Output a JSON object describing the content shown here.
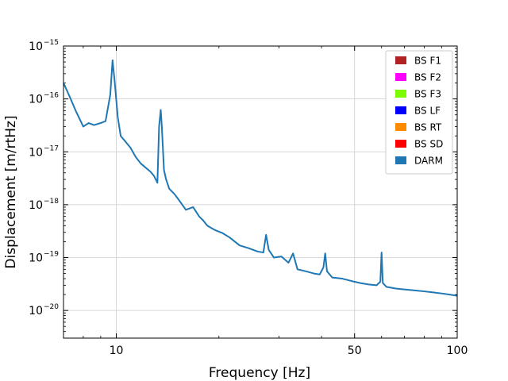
{
  "chart_data": {
    "type": "line",
    "xlabel": "Frequency [Hz]",
    "ylabel": "Displacement [m/rtHz]",
    "x_scale": "log",
    "y_scale": "log",
    "xlim": [
      7,
      100
    ],
    "ylim": [
      3e-21,
      1e-15
    ],
    "grid": true,
    "legend_position": "top-right",
    "x_ticks": [
      {
        "value": 10,
        "label": "10"
      },
      {
        "value": 50,
        "label": "50"
      },
      {
        "value": 100,
        "label": "100"
      }
    ],
    "y_ticks": [
      {
        "value": 1e-15,
        "base": "10",
        "exp": "−15"
      },
      {
        "value": 1e-16,
        "base": "10",
        "exp": "−16"
      },
      {
        "value": 1e-17,
        "base": "10",
        "exp": "−17"
      },
      {
        "value": 1e-18,
        "base": "10",
        "exp": "−18"
      },
      {
        "value": 1e-19,
        "base": "10",
        "exp": "−19"
      },
      {
        "value": 1e-20,
        "base": "10",
        "exp": "−20"
      }
    ],
    "legend": [
      {
        "name": "BS F1",
        "color": "#b22222"
      },
      {
        "name": "BS F2",
        "color": "#ff00ff"
      },
      {
        "name": "BS F3",
        "color": "#7cfc00"
      },
      {
        "name": "BS LF",
        "color": "#0000ff"
      },
      {
        "name": "BS RT",
        "color": "#ff8c00"
      },
      {
        "name": "BS SD",
        "color": "#ff0000"
      },
      {
        "name": "DARM",
        "color": "#1f77b4"
      }
    ],
    "series": [
      {
        "name": "DARM",
        "color": "#1f77b4",
        "x": [
          7.0,
          7.3,
          7.6,
          8.0,
          8.3,
          8.6,
          9.0,
          9.3,
          9.6,
          9.75,
          9.9,
          10.1,
          10.3,
          10.6,
          11.0,
          11.4,
          11.8,
          12.2,
          12.6,
          12.9,
          13.2,
          13.35,
          13.5,
          13.6,
          13.8,
          14.0,
          14.3,
          14.8,
          15.3,
          16.0,
          16.8,
          17.5,
          18.0,
          18.5,
          19.5,
          20.5,
          21.5,
          23.0,
          24.5,
          26.0,
          27.0,
          27.5,
          28.0,
          29.0,
          30.5,
          32.0,
          33.0,
          34.0,
          36.0,
          38.0,
          39.5,
          40.5,
          41.0,
          41.5,
          43.0,
          46.0,
          49.0,
          52.0,
          55.0,
          58.0,
          59.5,
          60.0,
          60.5,
          62.0,
          66.0,
          70.0,
          75.0,
          80.0,
          85.0,
          90.0,
          95.0,
          100.0
        ],
        "y": [
          2e-16,
          1.1e-16,
          6e-17,
          3e-17,
          3.5e-17,
          3.2e-17,
          3.5e-17,
          3.8e-17,
          1.2e-16,
          5.4e-16,
          2e-16,
          4.5e-17,
          2e-17,
          1.6e-17,
          1.2e-17,
          8e-18,
          6e-18,
          5e-18,
          4.2e-18,
          3.5e-18,
          2.6e-18,
          3e-17,
          6.2e-17,
          3e-17,
          4.5e-18,
          3e-18,
          2e-18,
          1.6e-18,
          1.2e-18,
          8e-19,
          9e-19,
          6e-19,
          5e-19,
          4e-19,
          3.3e-19,
          2.9e-19,
          2.4e-19,
          1.7e-19,
          1.5e-19,
          1.3e-19,
          1.25e-19,
          2.7e-19,
          1.4e-19,
          1e-19,
          1.05e-19,
          8e-20,
          1.2e-19,
          6e-20,
          5.5e-20,
          5e-20,
          4.8e-20,
          6.5e-20,
          1.2e-19,
          5.5e-20,
          4.2e-20,
          4e-20,
          3.6e-20,
          3.3e-20,
          3.1e-20,
          3e-20,
          3.5e-20,
          1.25e-19,
          3.3e-20,
          2.8e-20,
          2.6e-20,
          2.5e-20,
          2.4e-20,
          2.3e-20,
          2.2e-20,
          2.1e-20,
          2e-20,
          1.9e-20
        ]
      }
    ]
  }
}
